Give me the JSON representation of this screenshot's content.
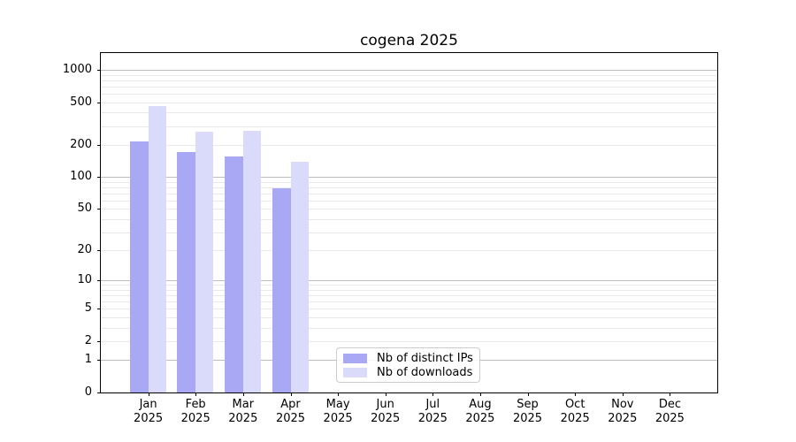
{
  "title": "cogena 2025",
  "chart_data": {
    "type": "bar",
    "title": "cogena 2025",
    "categories": [
      "Jan 2025",
      "Feb 2025",
      "Mar 2025",
      "Apr 2025",
      "May 2025",
      "Jun 2025",
      "Jul 2025",
      "Aug 2025",
      "Sep 2025",
      "Oct 2025",
      "Nov 2025",
      "Dec 2025"
    ],
    "series": [
      {
        "name": "Nb of distinct IPs",
        "color": "#a8a8f5",
        "values": [
          215,
          170,
          157,
          78,
          0,
          0,
          0,
          0,
          0,
          0,
          0,
          0
        ]
      },
      {
        "name": "Nb of downloads",
        "color": "#dadafa",
        "values": [
          460,
          265,
          270,
          140,
          0,
          0,
          0,
          0,
          0,
          0,
          0,
          0
        ]
      }
    ],
    "xlabel": "",
    "ylabel": "",
    "y_ticks": [
      0,
      1,
      2,
      5,
      10,
      20,
      50,
      100,
      200,
      500,
      1000
    ],
    "y_scale": "log10(value+1)",
    "ylim": [
      0,
      1435
    ],
    "grid": "horizontal, major and minor log lines",
    "legend_position": "lower center",
    "colors": {
      "major_grid": "#bdbdbd",
      "minor_grid": "#e9e9e9",
      "axis": "#000000",
      "background": "#ffffff"
    }
  }
}
